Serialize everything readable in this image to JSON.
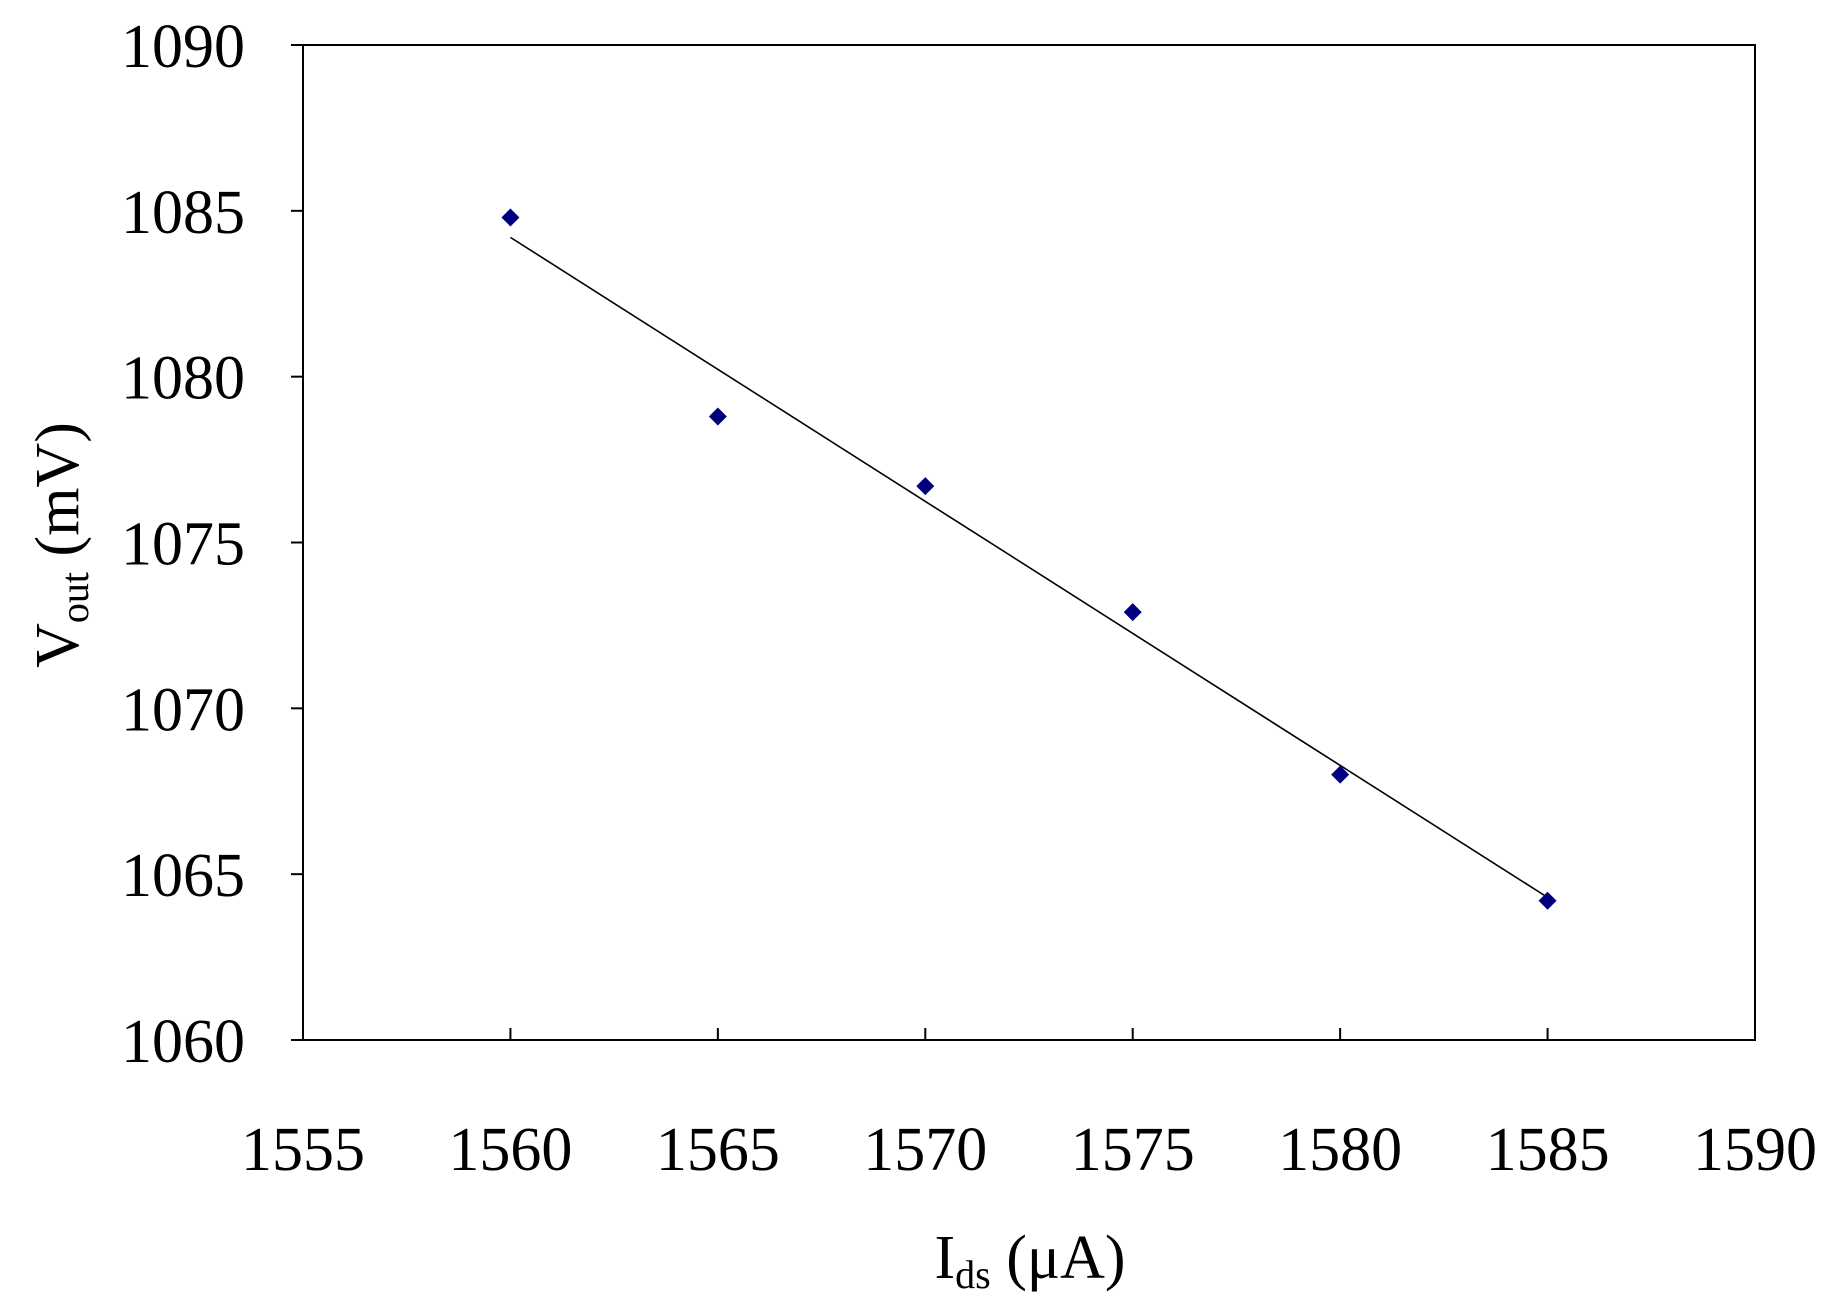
{
  "chart_data": {
    "type": "scatter",
    "title": "",
    "xlabel": {
      "main": "I",
      "sub": "ds",
      "rest": " (μA)"
    },
    "ylabel": {
      "main": "V",
      "sub": "out",
      "rest": " (mV)"
    },
    "xlim": [
      1555,
      1590
    ],
    "ylim": [
      1060,
      1090
    ],
    "xticks": [
      "1555",
      "1560",
      "1565",
      "1570",
      "1575",
      "1580",
      "1585",
      "1590"
    ],
    "yticks": [
      "1060",
      "1065",
      "1070",
      "1075",
      "1080",
      "1085",
      "1090"
    ],
    "grid": false,
    "legend": "none",
    "series": [
      {
        "marker": "diamond",
        "color": "#00007f",
        "points": [
          {
            "x": 1560,
            "y": 1084.8
          },
          {
            "x": 1565,
            "y": 1078.8
          },
          {
            "x": 1570,
            "y": 1076.7
          },
          {
            "x": 1575,
            "y": 1072.9
          },
          {
            "x": 1580,
            "y": 1068.0
          },
          {
            "x": 1585,
            "y": 1064.2
          }
        ]
      }
    ],
    "trendline": {
      "type": "linear",
      "color": "#000000",
      "points": [
        {
          "x": 1560,
          "y": 1084.2
        },
        {
          "x": 1585,
          "y": 1064.3
        }
      ]
    }
  }
}
